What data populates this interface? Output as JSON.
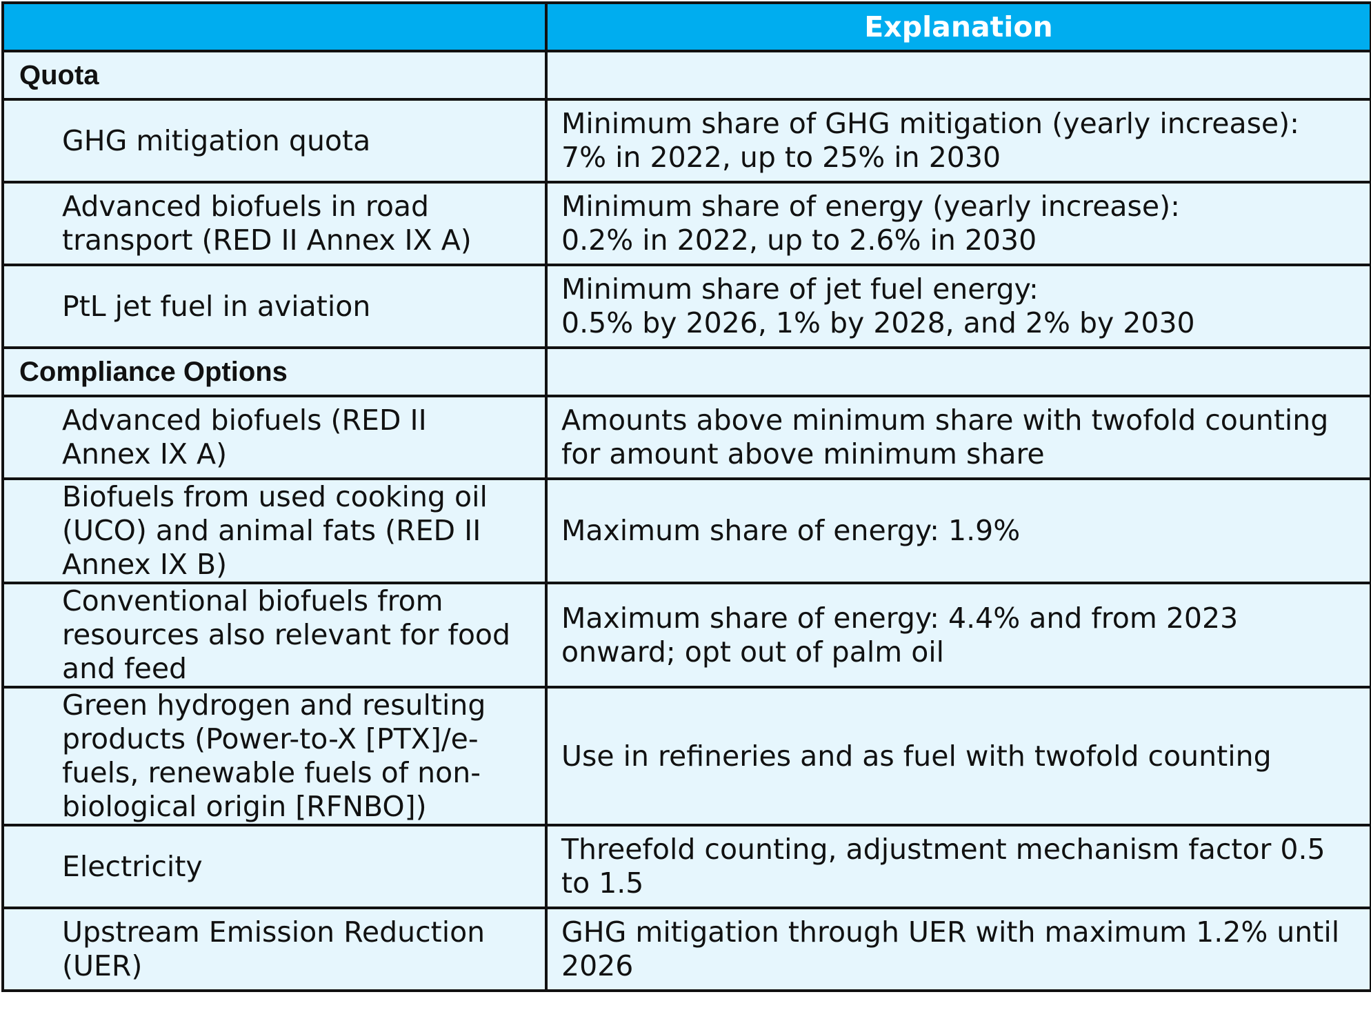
{
  "table": {
    "header": {
      "label": "",
      "explanation": "Explanation"
    },
    "sections": [
      {
        "title": "Quota",
        "rows": [
          {
            "label": [
              "GHG mitigation quota"
            ],
            "explanation": [
              "Minimum share of GHG mitigation (yearly increase):",
              "7% in 2022, up to 25% in 2030"
            ]
          },
          {
            "label": [
              "Advanced biofuels in road",
              "transport (RED II Annex IX A)"
            ],
            "explanation": [
              "Minimum share of energy (yearly increase):",
              "0.2% in 2022, up to 2.6% in 2030"
            ]
          },
          {
            "label": [
              "PtL jet fuel in aviation"
            ],
            "explanation": [
              "Minimum share of jet fuel energy:",
              "0.5% by 2026, 1% by 2028, and 2% by 2030"
            ]
          }
        ]
      },
      {
        "title": "Compliance Options",
        "rows": [
          {
            "label": [
              "Advanced biofuels (RED II",
              "Annex IX A)"
            ],
            "explanation": [
              "Amounts above minimum share with twofold counting",
              "for amount above minimum share"
            ]
          },
          {
            "label": [
              "Biofuels from used cooking oil",
              "(UCO) and animal fats (RED II",
              "Annex IX B)"
            ],
            "explanation": [
              "Maximum share of energy: 1.9%"
            ]
          },
          {
            "label": [
              "Conventional biofuels from",
              "resources also relevant for food",
              "and feed"
            ],
            "explanation": [
              "Maximum share of energy: 4.4% and from 2023",
              "onward; opt out of palm oil"
            ]
          },
          {
            "label": [
              "Green hydrogen and resulting",
              "products (Power-to-X [PTX]/e-",
              "fuels, renewable fuels of non-",
              "biological origin [RFNBO])"
            ],
            "explanation": [
              "Use in refineries and as fuel with twofold counting"
            ]
          },
          {
            "label": [
              "Electricity"
            ],
            "explanation": [
              "Threefold counting, adjustment mechanism factor 0.5",
              "to 1.5"
            ]
          },
          {
            "label": [
              "Upstream Emission Reduction",
              "(UER)"
            ],
            "explanation": [
              "GHG mitigation through UER with maximum 1.2% until",
              "2026"
            ]
          }
        ]
      }
    ]
  }
}
